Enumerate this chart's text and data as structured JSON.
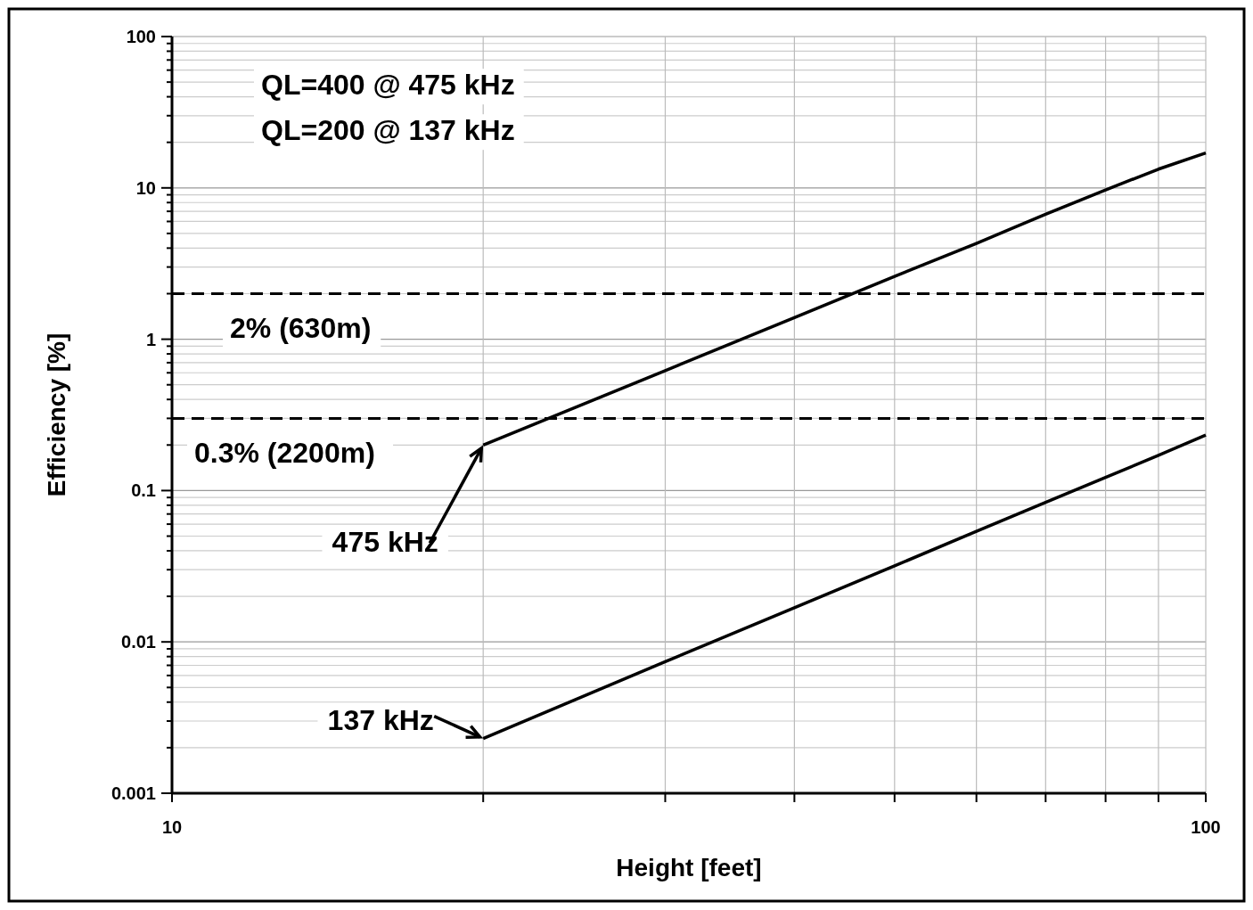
{
  "chart_data": {
    "type": "line",
    "xlabel": "Height [feet]",
    "ylabel": "Efficiency [%]",
    "log": "xy",
    "xlim": [
      10,
      100
    ],
    "xticks": [
      10,
      100
    ],
    "ylim": [
      0.001,
      100
    ],
    "yticks": [
      0.001,
      0.01,
      0.1,
      1,
      10,
      100
    ],
    "grid": true,
    "line_style": "solid",
    "series": [
      {
        "name": "475 kHz",
        "color": "#000000",
        "x": [
          20,
          30,
          40,
          50,
          60,
          70,
          80,
          90,
          100
        ],
        "values": [
          0.2,
          0.62,
          1.39,
          2.6,
          4.3,
          6.7,
          9.7,
          13.3,
          17
        ]
      },
      {
        "name": "137 kHz",
        "color": "#000000",
        "x": [
          20,
          30,
          40,
          50,
          60,
          70,
          80,
          90,
          100
        ],
        "values": [
          0.0023,
          0.0074,
          0.0168,
          0.0318,
          0.0538,
          0.0835,
          0.122,
          0.171,
          0.233
        ]
      }
    ],
    "ref_lines": [
      {
        "axis": "y",
        "value": 2,
        "label": "2% (630m)",
        "color": "#000000",
        "line_style": "dashed"
      },
      {
        "axis": "y",
        "value": 0.3,
        "label": "0.3% (2200m)",
        "color": "#000000",
        "line_style": "dashed"
      }
    ],
    "annotations": [
      "QL=400 @ 475 kHz",
      "QL=200 @ 137 kHz"
    ]
  }
}
